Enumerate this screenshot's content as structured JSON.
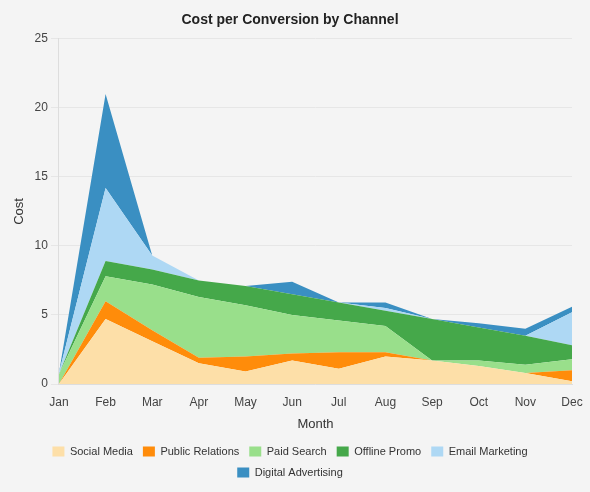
{
  "chart_data": {
    "type": "area",
    "title": "Cost per Conversion by Channel",
    "x_label": "Month",
    "y_label": "Cost",
    "categories": [
      "Jan",
      "Feb",
      "Mar",
      "Apr",
      "May",
      "Jun",
      "Jul",
      "Aug",
      "Sep",
      "Oct",
      "Nov",
      "Dec"
    ],
    "series": [
      {
        "name": "Social Media",
        "color": "#fddfa8",
        "values": [
          0,
          4.7,
          3.1,
          1.5,
          0.9,
          1.7,
          1.1,
          2.0,
          1.7,
          1.3,
          0.8,
          0.2
        ]
      },
      {
        "name": "Public Relations",
        "color": "#ff8c0a",
        "values": [
          0,
          1.3,
          0.8,
          0.4,
          1.1,
          0.5,
          1.2,
          0.3,
          0,
          0,
          0,
          0.8
        ]
      },
      {
        "name": "Paid Search",
        "color": "#99df8b",
        "values": [
          0.7,
          1.8,
          3.3,
          4.4,
          3.7,
          2.8,
          2.3,
          1.9,
          0,
          0.4,
          0.6,
          0.8
        ]
      },
      {
        "name": "Offline Promo",
        "color": "#45a84a",
        "values": [
          0,
          1.1,
          1.1,
          1.2,
          1.4,
          1.5,
          1.3,
          1.1,
          3.0,
          2.4,
          2.1,
          1.0
        ]
      },
      {
        "name": "Email Marketing",
        "color": "#aed8f4",
        "values": [
          0.1,
          5.3,
          1.0,
          0,
          0,
          0,
          0,
          0.2,
          0,
          0,
          0,
          2.4
        ]
      },
      {
        "name": "Digital Advertising",
        "color": "#3a8fc2",
        "values": [
          0,
          6.8,
          0,
          0,
          0,
          0.9,
          0,
          0.4,
          0,
          0.3,
          0.5,
          0.4
        ]
      }
    ],
    "ylim": [
      0,
      25
    ],
    "yticks": [
      0,
      5,
      10,
      15,
      20,
      25
    ],
    "stacked": true,
    "grid": true,
    "legend": "bottom"
  }
}
